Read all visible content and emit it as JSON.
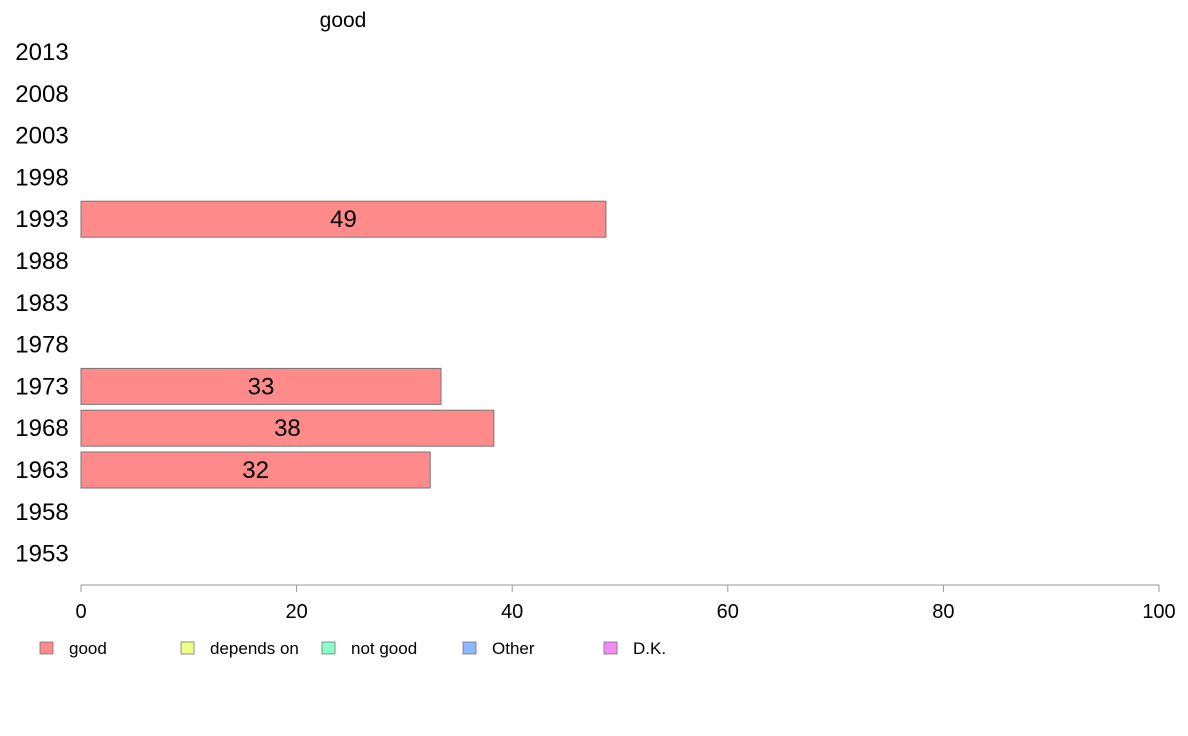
{
  "chart_data": {
    "type": "bar",
    "orientation": "horizontal",
    "title": "good",
    "categories": [
      "2013",
      "2008",
      "2003",
      "1998",
      "1993",
      "1988",
      "1983",
      "1978",
      "1973",
      "1968",
      "1963",
      "1958",
      "1953"
    ],
    "series": [
      {
        "name": "good",
        "color": "#ff8a8a",
        "values": [
          null,
          null,
          null,
          null,
          48.7,
          null,
          null,
          null,
          33.4,
          38.3,
          32.4,
          null,
          null
        ],
        "labels": [
          "",
          "",
          "",
          "",
          "49",
          "",
          "",
          "",
          "33",
          "38",
          "32",
          "",
          ""
        ]
      }
    ],
    "xlim": [
      0,
      100
    ],
    "xticks": [
      0,
      20,
      40,
      60,
      80,
      100
    ],
    "grid": false,
    "legend": {
      "placement": "bottom-left",
      "items": [
        {
          "label": "good",
          "color": "#ff8a8a"
        },
        {
          "label": "depends on",
          "color": "#eeff8a"
        },
        {
          "label": "not good",
          "color": "#8affc4"
        },
        {
          "label": "Other",
          "color": "#8ab8ff"
        },
        {
          "label": "D.K.",
          "color": "#f08af5"
        }
      ]
    },
    "colors": {
      "axis": "#999999",
      "bar_border": "#777777"
    }
  }
}
